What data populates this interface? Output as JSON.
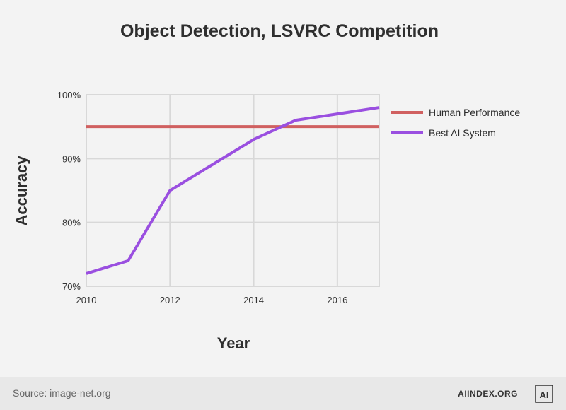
{
  "chart_data": {
    "type": "line",
    "title": "Object Detection, LSVRC Competition",
    "xlabel": "Year",
    "ylabel": "Accuracy",
    "xlim": [
      2010,
      2017
    ],
    "ylim": [
      70,
      100
    ],
    "x_ticks": [
      2010,
      2012,
      2014,
      2016
    ],
    "x_tick_labels": [
      "2010",
      "2012",
      "2014",
      "2016"
    ],
    "y_ticks": [
      70,
      80,
      90,
      100
    ],
    "y_tick_labels": [
      "70%",
      "80%",
      "90%",
      "100%"
    ],
    "grid": true,
    "legend_position": "right",
    "series": [
      {
        "name": "Human Performance",
        "color": "#d06060",
        "x": [
          2010,
          2017
        ],
        "y": [
          95,
          95
        ]
      },
      {
        "name": "Best AI System",
        "color": "#9a4fe0",
        "x": [
          2010,
          2011,
          2012,
          2013,
          2014,
          2015,
          2016,
          2017
        ],
        "y": [
          72,
          74,
          85,
          89,
          93,
          96,
          97,
          98
        ]
      }
    ]
  },
  "footer": {
    "source": "Source: image-net.org",
    "brand": "AIINDEX.ORG"
  },
  "logo": {
    "text": "AI",
    "icon": "ai-index-logo-icon"
  }
}
